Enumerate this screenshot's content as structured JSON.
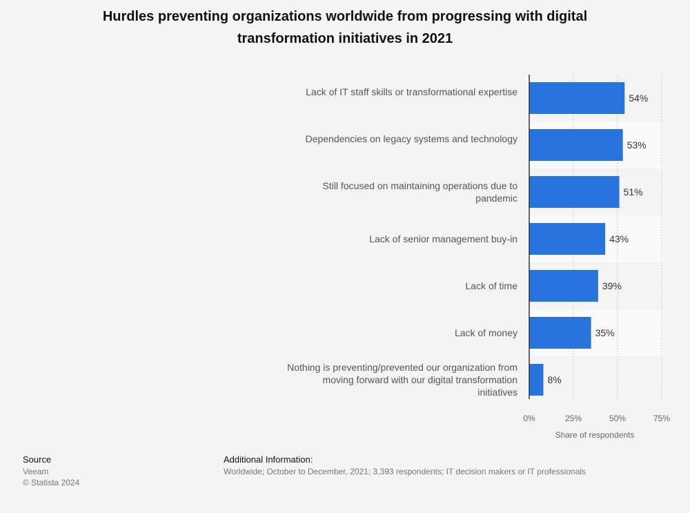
{
  "chart_data": {
    "type": "bar",
    "orientation": "horizontal",
    "title": "Hurdles preventing organizations worldwide from progressing with digital transformation initiatives in 2021",
    "categories": [
      "Lack of IT staff skills or transformational expertise",
      "Dependencies on legacy systems and technology",
      "Still focused on maintaining operations due to pandemic",
      "Lack of senior management buy-in",
      "Lack of time",
      "Lack of money",
      "Nothing is preventing/prevented our organization from moving forward with our digital transformation initiatives"
    ],
    "values": [
      54,
      53,
      51,
      43,
      39,
      35,
      8
    ],
    "value_labels": [
      "54%",
      "53%",
      "51%",
      "43%",
      "39%",
      "35%",
      "8%"
    ],
    "xlabel": "Share of respondents",
    "xlim": [
      0,
      75
    ],
    "xticks": [
      "0%",
      "25%",
      "50%",
      "75%"
    ],
    "grid": true,
    "bar_color": "#2874de"
  },
  "footer": {
    "source_heading": "Source",
    "source_name": "Veeam",
    "copyright": "© Statista 2024",
    "info_heading": "Additional Information:",
    "info_text": "Worldwide; October to December, 2021; 3,393 respondents; IT decision makers or IT professionals"
  }
}
